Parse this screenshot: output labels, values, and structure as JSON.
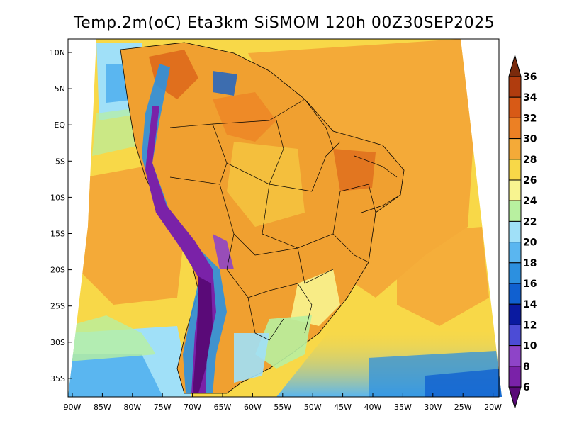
{
  "title": "Temp.2m(oC) Eta3km SiSMOM 120h 00Z30SEP2025",
  "variable": "Temp.2m",
  "units": "oC",
  "model": "Eta3km SiSMOM",
  "forecast": "120h",
  "valid": "00Z30SEP2025",
  "axes": {
    "latitude_labels": [
      "10N",
      "5N",
      "EQ",
      "5S",
      "10S",
      "15S",
      "20S",
      "25S",
      "30S",
      "35S"
    ],
    "longitude_labels": [
      "90W",
      "85W",
      "80W",
      "75W",
      "70W",
      "65W",
      "60W",
      "55W",
      "50W",
      "45W",
      "40W",
      "35W",
      "30W",
      "25W",
      "20W"
    ],
    "lat_range": [
      -38,
      11
    ],
    "lon_range": [
      -90,
      -20
    ]
  },
  "colorbar": {
    "labels": [
      "6",
      "8",
      "10",
      "12",
      "14",
      "16",
      "18",
      "20",
      "22",
      "24",
      "26",
      "28",
      "30",
      "32",
      "34",
      "36"
    ],
    "levels": [
      6,
      8,
      10,
      12,
      14,
      16,
      18,
      20,
      22,
      24,
      26,
      28,
      30,
      32,
      34,
      36
    ],
    "colors": [
      "#5a0a78",
      "#7a22a8",
      "#8e44c8",
      "#4c4cd6",
      "#0a1aa0",
      "#1060d0",
      "#2c90e0",
      "#5ab6f0",
      "#a0e0f8",
      "#b8f0a0",
      "#f8f490",
      "#f8d848",
      "#f4aa38",
      "#ec8024",
      "#d85a16",
      "#b03c0e",
      "#7a2a0c"
    ]
  },
  "colors": {
    "background": "#ffffff",
    "ocean_warm": "#f4aa38",
    "ocean_mid": "#f8d848",
    "ocean_cool": "#5ab6f0",
    "land_warm": "#f0a030",
    "andes_cold": "#7a22a8"
  }
}
